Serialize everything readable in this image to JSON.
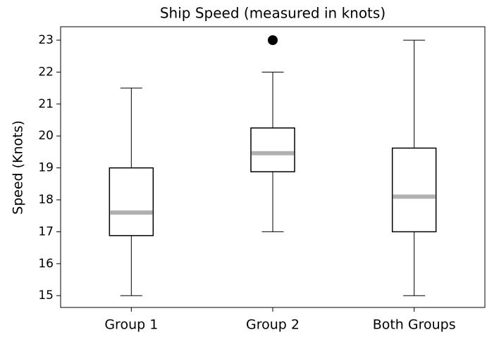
{
  "chart_data": {
    "type": "box",
    "title": "Ship Speed (measured in knots)",
    "y_label": "Speed (Knots)",
    "categories": [
      "Group 1",
      "Group 2",
      "Both Groups"
    ],
    "boxes": [
      {
        "whisker_low": 15,
        "q1": 16.88,
        "median": 17.6,
        "q3": 19.0,
        "whisker_high": 21.5
      },
      {
        "whisker_low": 17,
        "q1": 18.88,
        "median": 19.46,
        "q3": 20.25,
        "whisker_high": 22,
        "outliers": [
          23
        ]
      },
      {
        "whisker_low": 15,
        "q1": 17.0,
        "median": 18.1,
        "q3": 19.62,
        "whisker_high": 23
      }
    ],
    "box_color": "#000000",
    "median_color": "#b0b0b0",
    "outlier_color": "#000000",
    "ylim": [
      14.63,
      23.42
    ],
    "yticks": [
      15,
      16,
      17,
      18,
      19,
      20,
      21,
      22,
      23
    ],
    "grid": false
  }
}
